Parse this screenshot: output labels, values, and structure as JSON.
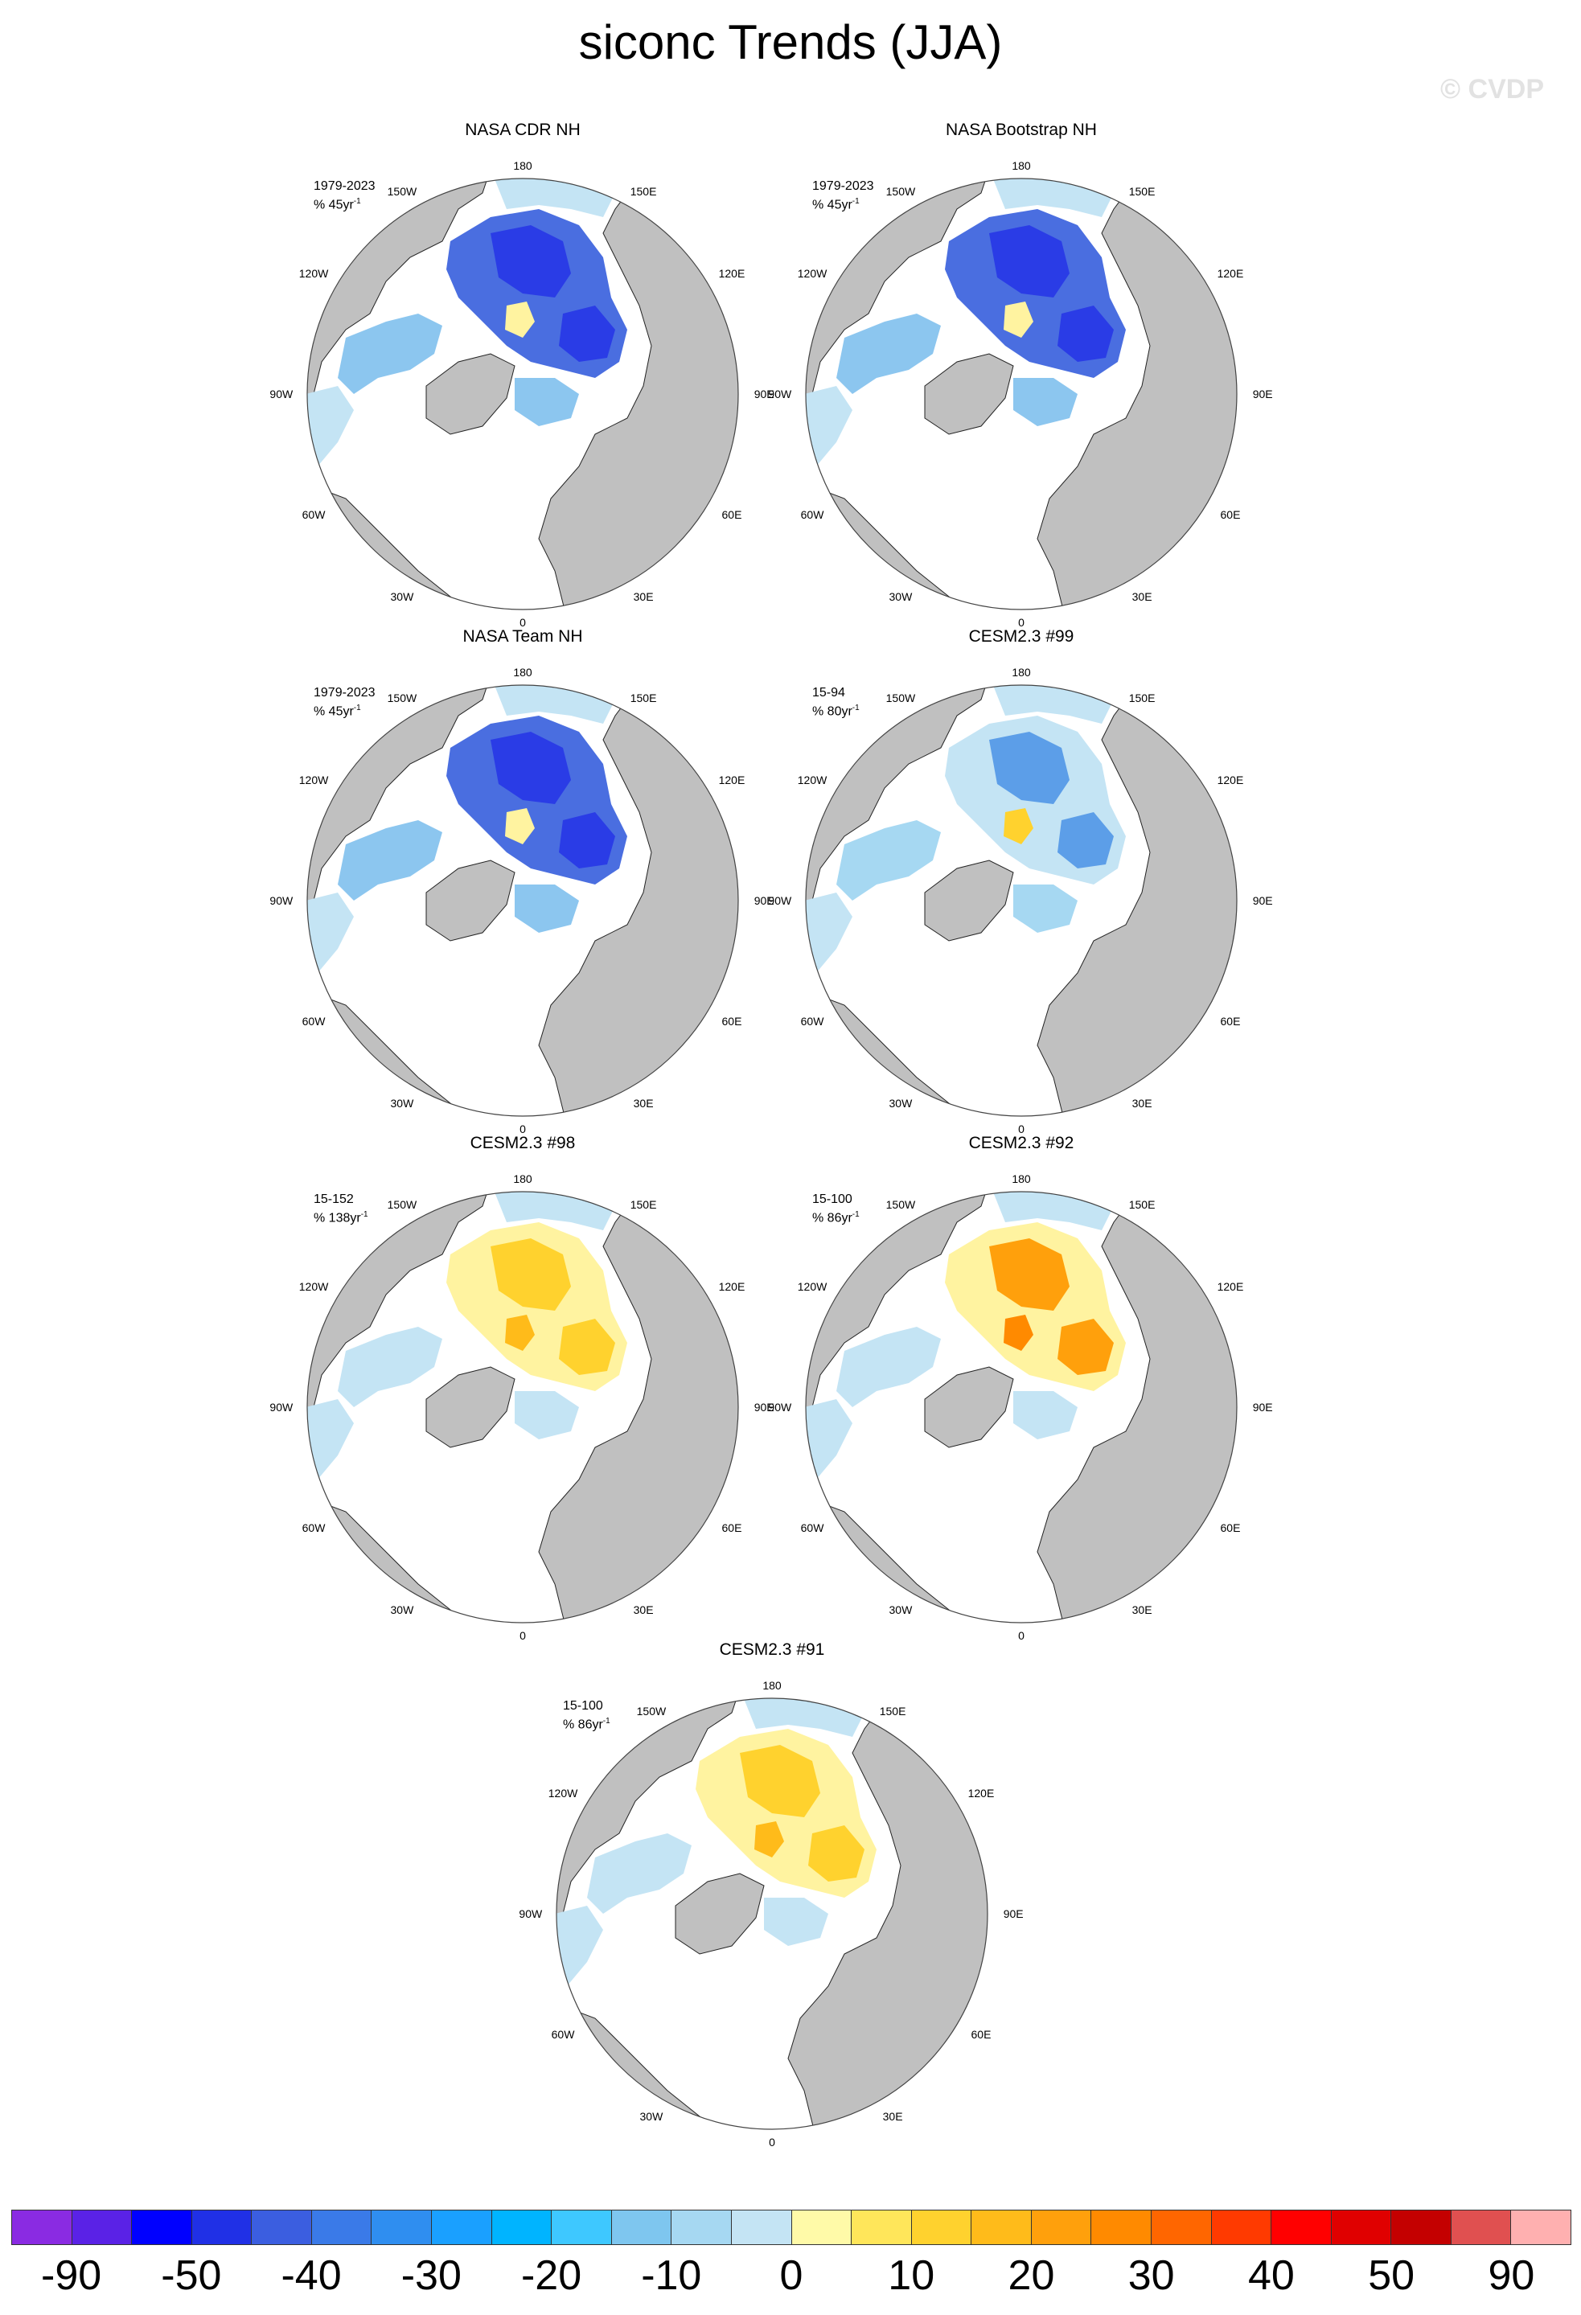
{
  "title": "siconc Trends (JJA)",
  "watermark": "© CVDP",
  "lon_labels": {
    "n180": "180",
    "w150": "150W",
    "e150": "150E",
    "w120": "120W",
    "e120": "120E",
    "w90": "90W",
    "e90": "90E",
    "w60": "60W",
    "e60": "60E",
    "w30": "30W",
    "e30": "30E",
    "s0": "0"
  },
  "panels": [
    {
      "title": "NASA CDR NH",
      "period": "1979-2023",
      "trend": "% 45yr",
      "exp": "-1",
      "pattern": "obs"
    },
    {
      "title": "NASA Bootstrap NH",
      "period": "1979-2023",
      "trend": "% 45yr",
      "exp": "-1",
      "pattern": "obs"
    },
    {
      "title": "NASA Team NH",
      "period": "1979-2023",
      "trend": "% 45yr",
      "exp": "-1",
      "pattern": "obs"
    },
    {
      "title": "CESM2.3 #99",
      "period": "15-94",
      "trend": "% 80yr",
      "exp": "-1",
      "pattern": "mix_blue"
    },
    {
      "title": "CESM2.3 #98",
      "period": "15-152",
      "trend": "% 138yr",
      "exp": "-1",
      "pattern": "mix_yellow"
    },
    {
      "title": "CESM2.3 #92",
      "period": "15-100",
      "trend": "% 86yr",
      "exp": "-1",
      "pattern": "mix_orange"
    },
    {
      "title": "CESM2.3 #91",
      "period": "15-100",
      "trend": "% 86yr",
      "exp": "-1",
      "pattern": "mix_yellow"
    }
  ],
  "colorbar": {
    "colors": [
      "#8a2be2",
      "#5a22e6",
      "#0000ff",
      "#2030e6",
      "#3b5ee0",
      "#3a7ae8",
      "#2f8ef0",
      "#1aa0ff",
      "#00b4ff",
      "#3ec8ff",
      "#7ec6ef",
      "#a6d8f2",
      "#c4e4f4",
      "#fffaa8",
      "#ffe65a",
      "#ffd22e",
      "#ffbb1a",
      "#ffa00c",
      "#ff8a00",
      "#ff6600",
      "#ff3a00",
      "#ff0000",
      "#e00000",
      "#c40000",
      "#e05050",
      "#ffb0b0"
    ],
    "labels": [
      "-90",
      "-50",
      "-40",
      "-30",
      "-20",
      "-10",
      "0",
      "10",
      "20",
      "30",
      "40",
      "50",
      "90"
    ]
  }
}
